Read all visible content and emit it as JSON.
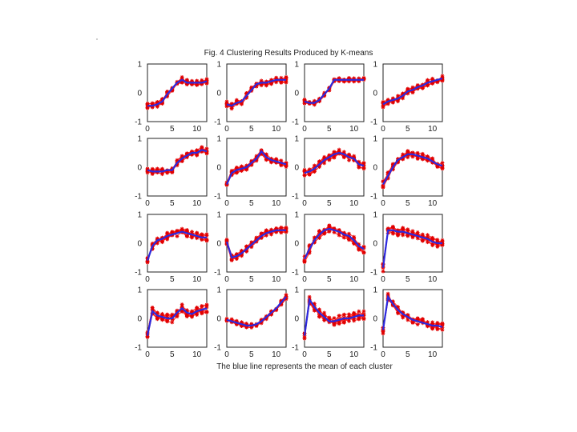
{
  "title": "Fig. 4 Clustering Results Produced by K-means",
  "caption": "The blue line represents the mean of each cluster",
  "colors": {
    "member": "#ff1a1a",
    "mean": "#2a2ae0"
  },
  "chart_data": {
    "type": "line",
    "layout": "4x4 small multiples",
    "xlim": [
      0,
      12
    ],
    "ylim": [
      -1,
      1
    ],
    "xticks": [
      "0",
      "5",
      "10"
    ],
    "yticks": [
      "1",
      "0",
      "-1"
    ],
    "x": [
      0,
      1,
      2,
      3,
      4,
      5,
      6,
      7,
      8,
      9,
      10,
      11,
      12
    ],
    "panels": [
      {
        "mean": [
          -0.45,
          -0.45,
          -0.4,
          -0.3,
          -0.05,
          0.15,
          0.35,
          0.45,
          0.35,
          0.35,
          0.35,
          0.35,
          0.4
        ],
        "spread": 0.1
      },
      {
        "mean": [
          -0.4,
          -0.45,
          -0.35,
          -0.3,
          -0.1,
          0.1,
          0.3,
          0.35,
          0.35,
          0.4,
          0.45,
          0.45,
          0.45
        ],
        "spread": 0.1
      },
      {
        "mean": [
          -0.3,
          -0.35,
          -0.35,
          -0.25,
          -0.05,
          0.15,
          0.45,
          0.45,
          0.45,
          0.45,
          0.45,
          0.45,
          0.45
        ],
        "spread": 0.07
      },
      {
        "mean": [
          -0.4,
          -0.3,
          -0.25,
          -0.2,
          -0.1,
          0.05,
          0.1,
          0.2,
          0.25,
          0.35,
          0.4,
          0.45,
          0.5
        ],
        "spread": 0.1
      },
      {
        "mean": [
          -0.1,
          -0.15,
          -0.15,
          -0.15,
          -0.1,
          -0.1,
          0.15,
          0.3,
          0.4,
          0.5,
          0.5,
          0.6,
          0.55
        ],
        "spread": 0.1
      },
      {
        "mean": [
          -0.6,
          -0.2,
          -0.1,
          -0.05,
          0.0,
          0.15,
          0.3,
          0.55,
          0.35,
          0.25,
          0.2,
          0.15,
          0.1
        ],
        "spread": 0.1
      },
      {
        "mean": [
          -0.2,
          -0.15,
          -0.05,
          0.1,
          0.25,
          0.35,
          0.45,
          0.5,
          0.45,
          0.35,
          0.3,
          0.1,
          0.05
        ],
        "spread": 0.12
      },
      {
        "mean": [
          -0.6,
          -0.3,
          0.0,
          0.25,
          0.35,
          0.45,
          0.45,
          0.4,
          0.35,
          0.3,
          0.2,
          0.1,
          0.05
        ],
        "spread": 0.12
      },
      {
        "mean": [
          -0.6,
          -0.1,
          0.1,
          0.15,
          0.25,
          0.3,
          0.35,
          0.4,
          0.35,
          0.3,
          0.25,
          0.2,
          0.2
        ],
        "spread": 0.12
      },
      {
        "mean": [
          0.05,
          -0.5,
          -0.45,
          -0.35,
          -0.2,
          -0.05,
          0.1,
          0.25,
          0.35,
          0.4,
          0.45,
          0.45,
          0.45
        ],
        "spread": 0.1
      },
      {
        "mean": [
          -0.55,
          -0.2,
          0.1,
          0.3,
          0.45,
          0.5,
          0.45,
          0.4,
          0.3,
          0.25,
          0.1,
          -0.1,
          -0.2
        ],
        "spread": 0.14
      },
      {
        "mean": [
          -0.85,
          0.45,
          0.45,
          0.4,
          0.4,
          0.35,
          0.3,
          0.25,
          0.2,
          0.15,
          0.05,
          0.0,
          0.0
        ],
        "spread": 0.14
      },
      {
        "mean": [
          -0.6,
          0.25,
          0.1,
          0.05,
          0.0,
          0.0,
          0.2,
          0.35,
          0.2,
          0.15,
          0.25,
          0.3,
          0.35
        ],
        "spread": 0.14
      },
      {
        "mean": [
          -0.05,
          -0.1,
          -0.15,
          -0.2,
          -0.25,
          -0.25,
          -0.2,
          -0.1,
          0.05,
          0.2,
          0.35,
          0.55,
          0.75
        ],
        "spread": 0.08
      },
      {
        "mean": [
          -0.6,
          0.65,
          0.4,
          0.2,
          0.05,
          -0.1,
          -0.1,
          -0.05,
          0.0,
          0.0,
          0.05,
          0.1,
          0.1
        ],
        "spread": 0.15
      },
      {
        "mean": [
          -0.4,
          0.75,
          0.5,
          0.3,
          0.15,
          0.05,
          -0.05,
          -0.1,
          -0.15,
          -0.2,
          -0.25,
          -0.25,
          -0.3
        ],
        "spread": 0.13
      }
    ]
  }
}
